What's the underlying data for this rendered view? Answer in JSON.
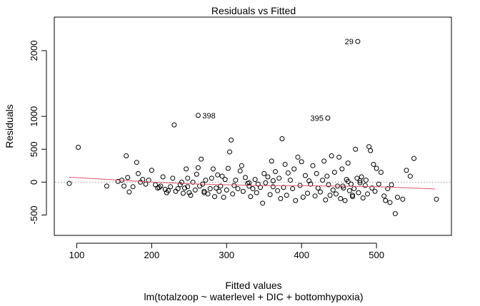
{
  "chart_data": {
    "type": "scatter",
    "title": "Residuals vs Fitted",
    "xlabel": "Fitted values",
    "subtitle": "lm(totalzoop ~ waterlevel + DIC + bottomhypoxia)",
    "ylabel": "Residuals",
    "xlim": [
      70,
      600
    ],
    "ylim": [
      -810,
      2510
    ],
    "x_ticks": [
      100,
      200,
      300,
      400,
      500
    ],
    "y_ticks": [
      -500,
      0,
      500,
      1000,
      2000
    ],
    "reference_line": {
      "y": 0,
      "style": "dotted",
      "color": "#999999"
    },
    "smooth_line": {
      "color": "#df536b",
      "x": [
        90,
        150,
        200,
        250,
        300,
        350,
        400,
        450,
        500,
        550,
        578
      ],
      "y": [
        75,
        35,
        0,
        -25,
        -40,
        -55,
        -55,
        -60,
        -70,
        -90,
        -105
      ]
    },
    "labeled_points": [
      {
        "label": "29",
        "x": 475,
        "y": 2140
      },
      {
        "label": "398",
        "x": 262,
        "y": 1015
      },
      {
        "label": "395",
        "x": 435,
        "y": 975
      }
    ],
    "points": [
      [
        90,
        -20
      ],
      [
        102,
        530
      ],
      [
        140,
        -60
      ],
      [
        155,
        10
      ],
      [
        160,
        30
      ],
      [
        163,
        -60
      ],
      [
        166,
        400
      ],
      [
        168,
        70
      ],
      [
        170,
        -150
      ],
      [
        175,
        -70
      ],
      [
        180,
        300
      ],
      [
        182,
        130
      ],
      [
        185,
        0
      ],
      [
        188,
        40
      ],
      [
        192,
        -30
      ],
      [
        196,
        30
      ],
      [
        200,
        180
      ],
      [
        205,
        -40
      ],
      [
        208,
        -90
      ],
      [
        212,
        -60
      ],
      [
        215,
        80
      ],
      [
        218,
        -110
      ],
      [
        220,
        -160
      ],
      [
        222,
        -130
      ],
      [
        225,
        -70
      ],
      [
        228,
        60
      ],
      [
        230,
        870
      ],
      [
        232,
        -140
      ],
      [
        235,
        -100
      ],
      [
        238,
        -40
      ],
      [
        240,
        0
      ],
      [
        242,
        -170
      ],
      [
        244,
        -90
      ],
      [
        246,
        200
      ],
      [
        248,
        60
      ],
      [
        250,
        -160
      ],
      [
        252,
        -200
      ],
      [
        255,
        0
      ],
      [
        258,
        -120
      ],
      [
        260,
        120
      ],
      [
        262,
        220
      ],
      [
        264,
        -60
      ],
      [
        266,
        350
      ],
      [
        268,
        -30
      ],
      [
        270,
        -160
      ],
      [
        272,
        30
      ],
      [
        275,
        -180
      ],
      [
        278,
        -100
      ],
      [
        280,
        60
      ],
      [
        282,
        200
      ],
      [
        284,
        -220
      ],
      [
        286,
        -90
      ],
      [
        288,
        110
      ],
      [
        290,
        -140
      ],
      [
        292,
        -60
      ],
      [
        294,
        90
      ],
      [
        296,
        -230
      ],
      [
        298,
        40
      ],
      [
        300,
        -120
      ],
      [
        302,
        210
      ],
      [
        304,
        460
      ],
      [
        306,
        640
      ],
      [
        308,
        -180
      ],
      [
        310,
        -50
      ],
      [
        312,
        30
      ],
      [
        315,
        -100
      ],
      [
        318,
        170
      ],
      [
        320,
        250
      ],
      [
        322,
        -140
      ],
      [
        325,
        70
      ],
      [
        328,
        -20
      ],
      [
        330,
        -60
      ],
      [
        332,
        -220
      ],
      [
        335,
        -100
      ],
      [
        338,
        40
      ],
      [
        340,
        -160
      ],
      [
        342,
        -30
      ],
      [
        345,
        -80
      ],
      [
        348,
        -320
      ],
      [
        350,
        130
      ],
      [
        352,
        -10
      ],
      [
        355,
        80
      ],
      [
        358,
        -190
      ],
      [
        360,
        320
      ],
      [
        362,
        -70
      ],
      [
        365,
        160
      ],
      [
        368,
        -130
      ],
      [
        370,
        60
      ],
      [
        372,
        -250
      ],
      [
        374,
        660
      ],
      [
        376,
        -80
      ],
      [
        378,
        270
      ],
      [
        380,
        -200
      ],
      [
        382,
        140
      ],
      [
        385,
        30
      ],
      [
        388,
        -100
      ],
      [
        390,
        200
      ],
      [
        392,
        -280
      ],
      [
        395,
        380
      ],
      [
        398,
        -50
      ],
      [
        400,
        310
      ],
      [
        402,
        -230
      ],
      [
        405,
        100
      ],
      [
        408,
        -170
      ],
      [
        410,
        20
      ],
      [
        412,
        -30
      ],
      [
        415,
        250
      ],
      [
        418,
        -210
      ],
      [
        420,
        130
      ],
      [
        422,
        -90
      ],
      [
        425,
        -150
      ],
      [
        428,
        30
      ],
      [
        430,
        320
      ],
      [
        432,
        -270
      ],
      [
        434,
        90
      ],
      [
        436,
        -40
      ],
      [
        438,
        -200
      ],
      [
        440,
        400
      ],
      [
        442,
        -120
      ],
      [
        444,
        150
      ],
      [
        446,
        -180
      ],
      [
        448,
        -60
      ],
      [
        450,
        380
      ],
      [
        452,
        -250
      ],
      [
        454,
        200
      ],
      [
        456,
        -90
      ],
      [
        458,
        -280
      ],
      [
        460,
        40
      ],
      [
        462,
        290
      ],
      [
        464,
        -130
      ],
      [
        466,
        -30
      ],
      [
        468,
        -220
      ],
      [
        470,
        -100
      ],
      [
        472,
        500
      ],
      [
        474,
        60
      ],
      [
        476,
        -160
      ],
      [
        478,
        20
      ],
      [
        480,
        80
      ],
      [
        482,
        -240
      ],
      [
        485,
        -50
      ],
      [
        488,
        -180
      ],
      [
        490,
        540
      ],
      [
        492,
        480
      ],
      [
        494,
        -90
      ],
      [
        496,
        270
      ],
      [
        498,
        -140
      ],
      [
        500,
        210
      ],
      [
        503,
        -30
      ],
      [
        506,
        150
      ],
      [
        510,
        -210
      ],
      [
        512,
        -280
      ],
      [
        515,
        -100
      ],
      [
        518,
        -310
      ],
      [
        520,
        -40
      ],
      [
        525,
        -480
      ],
      [
        528,
        -230
      ],
      [
        535,
        -260
      ],
      [
        540,
        180
      ],
      [
        545,
        90
      ],
      [
        550,
        360
      ],
      [
        455,
        -60
      ],
      [
        462,
        10
      ],
      [
        468,
        -200
      ],
      [
        478,
        -10
      ],
      [
        486,
        30
      ],
      [
        362,
        20
      ],
      [
        330,
        -10
      ],
      [
        270,
        -140
      ],
      [
        248,
        -70
      ],
      [
        210,
        -80
      ],
      [
        580,
        -260
      ]
    ]
  }
}
